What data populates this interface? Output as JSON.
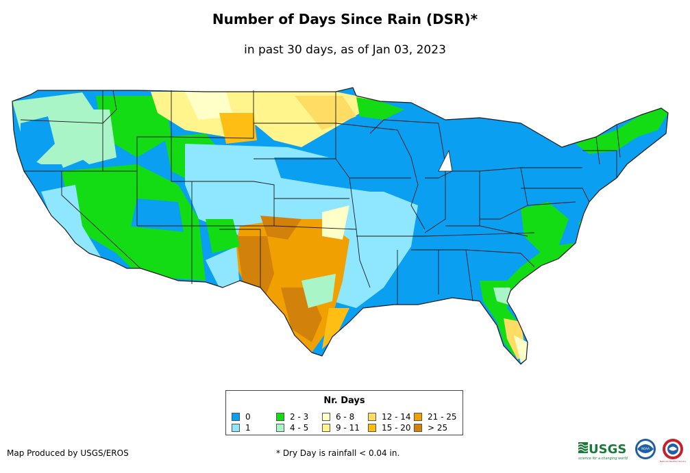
{
  "title": "Number of Days Since Rain (DSR)*",
  "subtitle": "in past 30 days, as of Jan 03, 2023",
  "legend": {
    "title": "Nr. Days",
    "items": [
      {
        "label": "0",
        "color": "#0a9ff0"
      },
      {
        "label": "1",
        "color": "#8ee6ff"
      },
      {
        "label": "2 - 3",
        "color": "#14dc14"
      },
      {
        "label": "4 - 5",
        "color": "#aaf5c8"
      },
      {
        "label": "6 - 8",
        "color": "#ffffc8"
      },
      {
        "label": "9 - 11",
        "color": "#fff58c"
      },
      {
        "label": "12 - 14",
        "color": "#ffdc64"
      },
      {
        "label": "15 - 20",
        "color": "#ffbe14"
      },
      {
        "label": "21 - 25",
        "color": "#f0a000"
      },
      {
        "label": "> 25",
        "color": "#d2820a"
      }
    ]
  },
  "credit": "Map Produced by USGS/EROS",
  "footnote": "* Dry Day is rainfall < 0.04 in.",
  "logos": {
    "usgs": "USGS",
    "usgs_tagline": "science for a changing world",
    "noaa": "NOAA",
    "nws": "National Weather Service"
  }
}
